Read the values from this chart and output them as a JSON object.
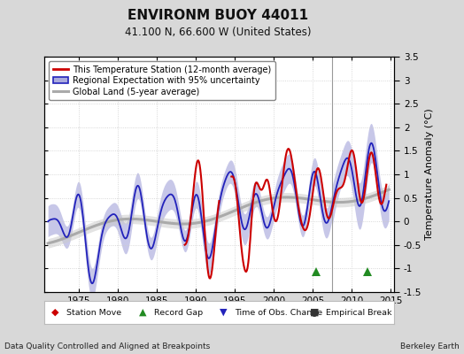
{
  "title": "ENVIRONM BUOY 44011",
  "subtitle": "41.100 N, 66.600 W (United States)",
  "ylabel": "Temperature Anomaly (°C)",
  "xlabel_left": "Data Quality Controlled and Aligned at Breakpoints",
  "xlabel_right": "Berkeley Earth",
  "xlim": [
    1970.5,
    2015.5
  ],
  "ylim": [
    -1.5,
    3.5
  ],
  "yticks": [
    -1.5,
    -1.0,
    -0.5,
    0.0,
    0.5,
    1.0,
    1.5,
    2.0,
    2.5,
    3.0,
    3.5
  ],
  "ytick_labels": [
    "-1.5",
    "-1",
    "-0.5",
    "0",
    "0.5",
    "1",
    "1.5",
    "2",
    "2.5",
    "3",
    "3.5"
  ],
  "xticks": [
    1975,
    1980,
    1985,
    1990,
    1995,
    2000,
    2005,
    2010,
    2015
  ],
  "vline_x": 2007.5,
  "marker_green1_x": 2005.5,
  "marker_green2_x": 2012.0,
  "marker_y": -1.07,
  "bg_color": "#d8d8d8",
  "plot_bg_color": "#ffffff",
  "red_color": "#cc0000",
  "blue_color": "#2222bb",
  "blue_fill_color": "#aaaadd",
  "gray_color": "#aaaaaa",
  "gray_fill_color": "#cccccc",
  "legend_items": [
    "This Temperature Station (12-month average)",
    "Regional Expectation with 95% uncertainty",
    "Global Land (5-year average)"
  ]
}
